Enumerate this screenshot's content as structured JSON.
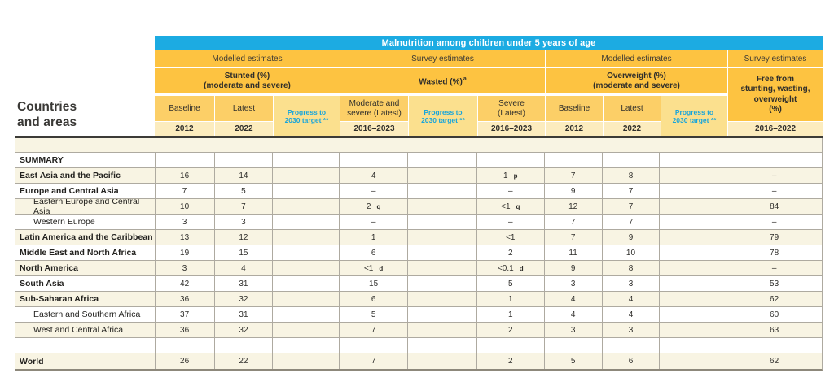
{
  "page": {
    "row_header_line1": "Countries",
    "row_header_line2": "and areas"
  },
  "banner": {
    "title": "Malnutrition among children under 5 years of age"
  },
  "header": {
    "groups": [
      {
        "label": "Modelled estimates"
      },
      {
        "label": "Survey estimates"
      },
      {
        "label": "Modelled estimates"
      },
      {
        "label": "Survey estimates"
      }
    ],
    "stunted": {
      "line1": "Stunted (%)",
      "line2": "(moderate and severe)"
    },
    "wasted": {
      "label": "Wasted (%)",
      "footnote": "a"
    },
    "overweight": {
      "line1": "Overweight (%)",
      "line2": "(moderate and severe)"
    },
    "free_from": {
      "line1": "Free from",
      "line2": "stunting, wasting,",
      "line3": "overweight",
      "line4": "(%)",
      "year": "2016–2022"
    },
    "progress": {
      "line1": "Progress to",
      "line2": "2030 target **"
    },
    "subcols": {
      "stunted_baseline": {
        "label": "Baseline",
        "year": "2012"
      },
      "stunted_latest": {
        "label": "Latest",
        "year": "2022"
      },
      "wasted_moderate": {
        "line1": "Moderate and",
        "line2": "severe (Latest)",
        "year": "2016–2023"
      },
      "wasted_severe": {
        "line1": "Severe",
        "line2": "(Latest)",
        "year": "2016–2023"
      },
      "overweight_baseline": {
        "label": "Baseline",
        "year": "2012"
      },
      "overweight_latest": {
        "label": "Latest",
        "year": "2022"
      }
    }
  },
  "colors": {
    "banner_cyan": "#1cabe2",
    "header_yellow": "#fdc341",
    "subheader_yellow": "#fccf67",
    "year_band": "#fcecbe",
    "progress_band": "#fbe08e",
    "progress_text_cyan": "#18a5db",
    "row_cream": "#f8f4e3"
  },
  "table": {
    "column_order": [
      "Stunted Baseline 2012",
      "Stunted Latest 2022",
      "Stunted Progress to 2030 target",
      "Wasted moderate and severe (Latest) 2016–2023",
      "Wasted Progress to 2030 target",
      "Wasted Severe (Latest) 2016–2023",
      "Overweight Baseline 2012",
      "Overweight Latest 2022",
      "Overweight Progress to 2030 target",
      "Free from stunting, wasting, overweight (%) 2016–2022"
    ],
    "rows": [
      {
        "name": "SUMMARY",
        "kind": "section",
        "cells": [
          "",
          "",
          "",
          "",
          "",
          "",
          "",
          "",
          "",
          ""
        ]
      },
      {
        "name": "East Asia and the Pacific",
        "kind": "region",
        "cells": [
          "16",
          "14",
          "",
          "4",
          "",
          {
            "v": "1",
            "f": "p"
          },
          "7",
          "8",
          "",
          "–"
        ]
      },
      {
        "name": "Europe and Central Asia",
        "kind": "region",
        "cells": [
          "7",
          "5",
          "",
          "–",
          "",
          "–",
          "9",
          "7",
          "",
          "–"
        ]
      },
      {
        "name": "Eastern Europe and Central Asia",
        "kind": "subregion",
        "cells": [
          "10",
          "7",
          "",
          {
            "v": "2",
            "f": "q"
          },
          "",
          {
            "v": "<1",
            "f": "q"
          },
          "12",
          "7",
          "",
          "84"
        ]
      },
      {
        "name": "Western Europe",
        "kind": "subregion",
        "cells": [
          "3",
          "3",
          "",
          "–",
          "",
          "–",
          "7",
          "7",
          "",
          "–"
        ]
      },
      {
        "name": "Latin America and the Caribbean",
        "kind": "region",
        "cells": [
          "13",
          "12",
          "",
          "1",
          "",
          "<1",
          "7",
          "9",
          "",
          "79"
        ]
      },
      {
        "name": "Middle East and North Africa",
        "kind": "region",
        "cells": [
          "19",
          "15",
          "",
          "6",
          "",
          "2",
          "11",
          "10",
          "",
          "78"
        ]
      },
      {
        "name": "North America",
        "kind": "region",
        "cells": [
          "3",
          "4",
          "",
          {
            "v": "<1",
            "f": "d"
          },
          "",
          {
            "v": "<0.1",
            "f": "d"
          },
          "9",
          "8",
          "",
          "–"
        ]
      },
      {
        "name": "South Asia",
        "kind": "region",
        "cells": [
          "42",
          "31",
          "",
          "15",
          "",
          "5",
          "3",
          "3",
          "",
          "53"
        ]
      },
      {
        "name": "Sub-Saharan Africa",
        "kind": "region",
        "cells": [
          "36",
          "32",
          "",
          "6",
          "",
          "1",
          "4",
          "4",
          "",
          "62"
        ]
      },
      {
        "name": "Eastern and Southern Africa",
        "kind": "subregion",
        "cells": [
          "37",
          "31",
          "",
          "5",
          "",
          "1",
          "4",
          "4",
          "",
          "60"
        ]
      },
      {
        "name": "West and Central Africa",
        "kind": "subregion",
        "cells": [
          "36",
          "32",
          "",
          "7",
          "",
          "2",
          "3",
          "3",
          "",
          "63"
        ]
      },
      {
        "name": "",
        "kind": "blank",
        "cells": [
          "",
          "",
          "",
          "",
          "",
          "",
          "",
          "",
          "",
          ""
        ]
      },
      {
        "name": "World",
        "kind": "region",
        "cells": [
          "26",
          "22",
          "",
          "7",
          "",
          "2",
          "5",
          "6",
          "",
          "62"
        ]
      }
    ]
  }
}
